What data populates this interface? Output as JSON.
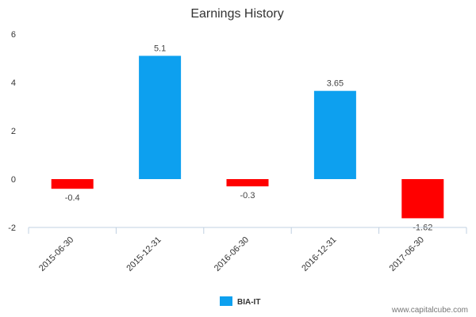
{
  "chart_data": {
    "type": "bar",
    "title": "Earnings History",
    "xlabel": "",
    "ylabel": "",
    "categories": [
      "2015-06-30",
      "2015-12-31",
      "2016-06-30",
      "2016-12-31",
      "2017-06-30"
    ],
    "series": [
      {
        "name": "BIA-IT",
        "values": [
          -0.4,
          5.1,
          -0.3,
          3.65,
          -1.62
        ],
        "color": "#0da0ef"
      }
    ],
    "data_labels": [
      "-0.4",
      "5.1",
      "-0.3",
      "3.65",
      "-1.62"
    ],
    "positive_color": "#0da0ef",
    "negative_color": "#ff0000",
    "ylim": [
      -2,
      6
    ],
    "yticks": [
      -2,
      0,
      2,
      4,
      6
    ],
    "grid": false,
    "legend": {
      "position": "bottom-center",
      "label": "BIA-IT"
    }
  },
  "credit": "www.capitalcube.com"
}
